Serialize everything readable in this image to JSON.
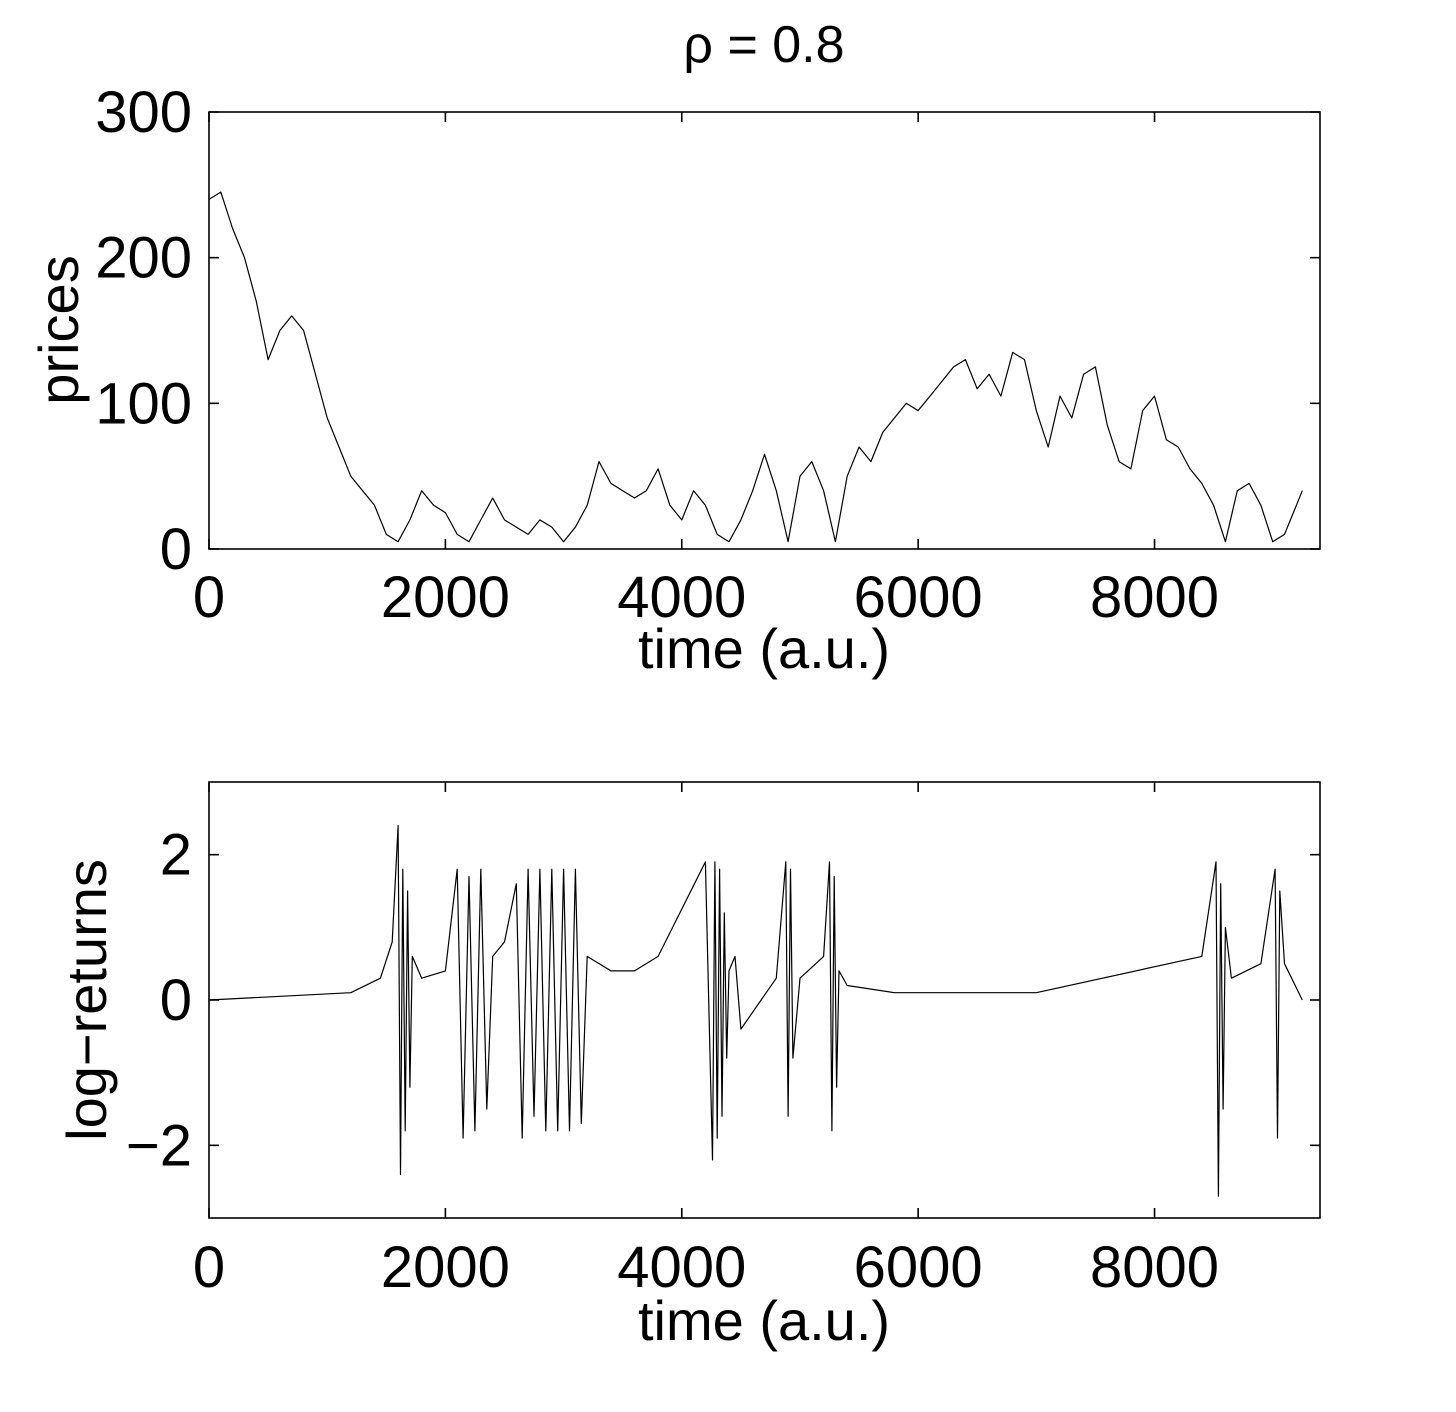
{
  "figure_title": "ρ = 0.8",
  "chart_data": [
    {
      "type": "line",
      "xlabel": "time (a.u.)",
      "ylabel": "prices",
      "xlim": [
        0,
        9400
      ],
      "ylim": [
        0,
        300
      ],
      "xticks": [
        0,
        2000,
        4000,
        6000,
        8000
      ],
      "xtick_labels": [
        "0",
        "2000",
        "4000",
        "6000",
        "8000"
      ],
      "yticks": [
        0,
        100,
        200,
        300
      ],
      "ytick_labels": [
        "0",
        "100",
        "200",
        "300"
      ],
      "grid": false,
      "series": [
        {
          "x": [
            0,
            100,
            200,
            300,
            400,
            500,
            600,
            700,
            800,
            900,
            1000,
            1100,
            1200,
            1300,
            1400,
            1500,
            1600,
            1700,
            1800,
            1900,
            2000,
            2100,
            2200,
            2300,
            2400,
            2500,
            2600,
            2700,
            2800,
            2900,
            3000,
            3100,
            3200,
            3300,
            3400,
            3500,
            3600,
            3700,
            3800,
            3900,
            4000,
            4100,
            4200,
            4300,
            4400,
            4500,
            4600,
            4700,
            4800,
            4900,
            5000,
            5100,
            5200,
            5300,
            5400,
            5500,
            5600,
            5700,
            5800,
            5900,
            6000,
            6100,
            6200,
            6300,
            6400,
            6500,
            6600,
            6700,
            6800,
            6900,
            7000,
            7100,
            7200,
            7300,
            7400,
            7500,
            7600,
            7700,
            7800,
            7900,
            8000,
            8100,
            8200,
            8300,
            8400,
            8500,
            8600,
            8700,
            8800,
            8900,
            9000,
            9100,
            9200,
            9250
          ],
          "y": [
            240,
            245,
            220,
            200,
            170,
            130,
            150,
            160,
            150,
            120,
            90,
            70,
            50,
            40,
            30,
            10,
            5,
            20,
            40,
            30,
            25,
            10,
            5,
            20,
            35,
            20,
            15,
            10,
            20,
            15,
            5,
            15,
            30,
            60,
            45,
            40,
            35,
            40,
            55,
            30,
            20,
            40,
            30,
            10,
            5,
            20,
            40,
            65,
            40,
            5,
            50,
            60,
            40,
            5,
            50,
            70,
            60,
            80,
            90,
            100,
            95,
            105,
            115,
            125,
            130,
            110,
            120,
            105,
            135,
            130,
            95,
            70,
            105,
            90,
            120,
            125,
            85,
            60,
            55,
            95,
            105,
            75,
            70,
            55,
            45,
            30,
            5,
            40,
            45,
            30,
            5,
            10,
            30,
            40
          ]
        }
      ]
    },
    {
      "type": "line",
      "xlabel": "time (a.u.)",
      "ylabel": "log−returns",
      "xlim": [
        0,
        9400
      ],
      "ylim": [
        -3,
        3
      ],
      "xticks": [
        0,
        2000,
        4000,
        6000,
        8000
      ],
      "xtick_labels": [
        "0",
        "2000",
        "4000",
        "6000",
        "8000"
      ],
      "yticks": [
        -2,
        0,
        2
      ],
      "ytick_labels": [
        "−2",
        "0",
        "2"
      ],
      "grid": false,
      "series": [
        {
          "x": [
            0,
            1200,
            1450,
            1550,
            1600,
            1620,
            1640,
            1660,
            1680,
            1700,
            1720,
            1800,
            2000,
            2100,
            2150,
            2200,
            2250,
            2300,
            2350,
            2400,
            2500,
            2600,
            2650,
            2700,
            2750,
            2800,
            2850,
            2900,
            2950,
            3000,
            3050,
            3100,
            3150,
            3200,
            3400,
            3600,
            3800,
            4200,
            4260,
            4280,
            4300,
            4320,
            4340,
            4360,
            4380,
            4400,
            4450,
            4500,
            4800,
            4880,
            4900,
            4920,
            4940,
            5000,
            5200,
            5250,
            5270,
            5290,
            5310,
            5330,
            5400,
            5800,
            7000,
            8400,
            8520,
            8540,
            8560,
            8580,
            8600,
            8650,
            8900,
            9020,
            9040,
            9060,
            9100,
            9250
          ],
          "y": [
            0,
            0.1,
            0.3,
            0.8,
            2.4,
            -2.4,
            1.8,
            -1.8,
            1.5,
            -1.2,
            0.6,
            0.3,
            0.4,
            1.8,
            -1.9,
            1.7,
            -1.8,
            1.8,
            -1.5,
            0.6,
            0.8,
            1.6,
            -1.9,
            1.8,
            -1.6,
            1.8,
            -1.8,
            1.8,
            -1.8,
            1.8,
            -1.8,
            1.8,
            -1.7,
            0.6,
            0.4,
            0.4,
            0.6,
            1.9,
            -2.2,
            1.9,
            -1.9,
            1.8,
            -1.6,
            1.2,
            -0.8,
            0.4,
            0.6,
            -0.4,
            0.3,
            1.9,
            -1.6,
            1.8,
            -0.8,
            0.3,
            0.6,
            1.9,
            -1.8,
            1.7,
            -1.2,
            0.4,
            0.2,
            0.1,
            0.1,
            0.6,
            1.9,
            -2.7,
            1.6,
            -1.5,
            1.0,
            0.3,
            0.5,
            1.8,
            -1.9,
            1.5,
            0.5,
            0
          ]
        }
      ]
    }
  ]
}
